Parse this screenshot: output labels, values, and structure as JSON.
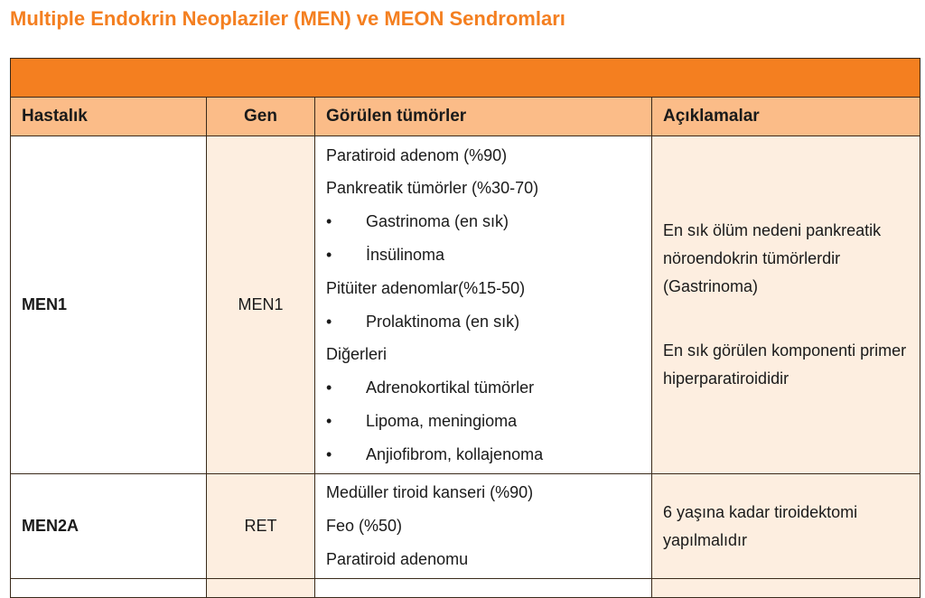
{
  "title": "Multiple Endokrin Neoplaziler (MEN) ve MEON Sendromları",
  "colors": {
    "accent": "#f47f20",
    "header": "#fbbc88",
    "cell_tint": "#fdeee0"
  },
  "headers": {
    "disease": "Hastalık",
    "gene": "Gen",
    "tumors": "Görülen tümörler",
    "notes": "Açıklamalar"
  },
  "rows": [
    {
      "disease": "MEN1",
      "gene": "MEN1",
      "tumors": [
        {
          "text": "Paratiroid adenom (%90)",
          "bullet": false
        },
        {
          "text": "Pankreatik tümörler (%30-70)",
          "bullet": false
        },
        {
          "text": "Gastrinoma (en sık)",
          "bullet": true
        },
        {
          "text": "İnsülinoma",
          "bullet": true
        },
        {
          "text": "Pitüiter adenomlar(%15-50)",
          "bullet": false
        },
        {
          "text": "Prolaktinoma (en sık)",
          "bullet": true
        },
        {
          "text": "Diğerleri",
          "bullet": false
        },
        {
          "text": "Adrenokortikal tümörler",
          "bullet": true
        },
        {
          "text": "Lipoma, meningioma",
          "bullet": true
        },
        {
          "text": "Anjiofibrom, kollajenoma",
          "bullet": true
        }
      ],
      "notes": [
        "En sık ölüm nedeni pankreatik nöroendokrin tümörlerdir (Gastrinoma)",
        "En sık görülen komponenti primer hiperparatiroididir"
      ]
    },
    {
      "disease": "MEN2A",
      "gene": "RET",
      "tumors": [
        {
          "text": "Medüller tiroid kanseri (%90)",
          "bullet": false
        },
        {
          "text": "Feo (%50)",
          "bullet": false
        },
        {
          "text": "Paratiroid adenomu",
          "bullet": false
        }
      ],
      "notes": [
        "6 yaşına kadar tiroidektomi yapılmalıdır"
      ]
    }
  ]
}
